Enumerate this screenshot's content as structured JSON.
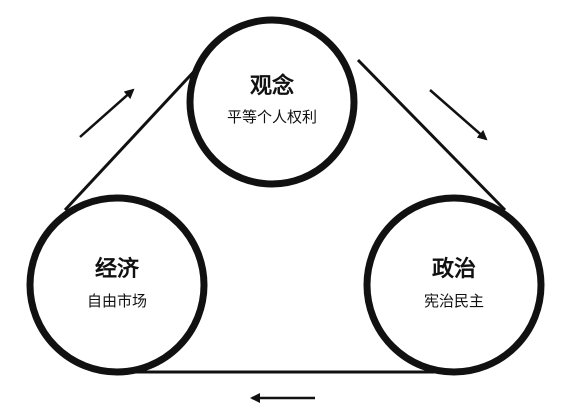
{
  "colors": {
    "stroke": "#111111",
    "background": "#ffffff"
  },
  "nodes": {
    "top": {
      "title": "观念",
      "subtitle": "平等个人权利"
    },
    "left": {
      "title": "经济",
      "subtitle": "自由市场"
    },
    "right": {
      "title": "政治",
      "subtitle": "宪治民主"
    }
  },
  "arrows": {
    "left_side": "up-right",
    "right_side": "down-right",
    "bottom": "left"
  }
}
